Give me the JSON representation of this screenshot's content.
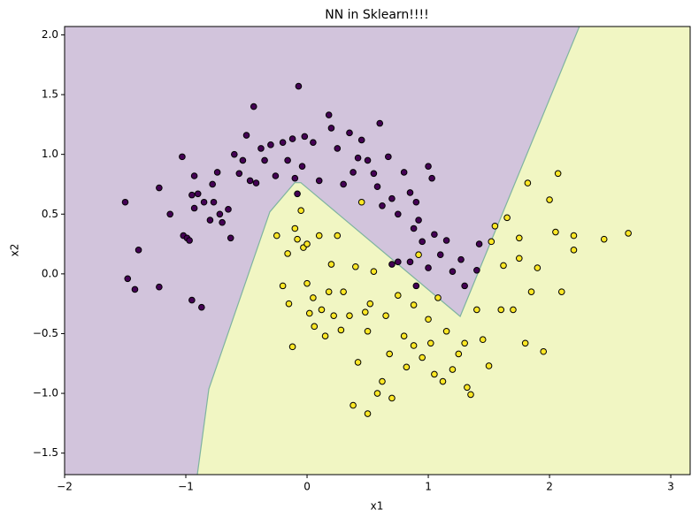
{
  "chart_data": {
    "type": "scatter",
    "title": "NN in Sklearn!!!!",
    "x_label": "x1",
    "y_label": "x2",
    "xlim": [
      -2.0,
      3.16
    ],
    "ylim": [
      -1.68,
      2.07
    ],
    "xticks": [
      {
        "value": -2,
        "label": "−2"
      },
      {
        "value": -1,
        "label": "−1"
      },
      0,
      1,
      2,
      3
    ],
    "yticks": [
      {
        "value": -1.5,
        "label": "−1.5"
      },
      {
        "value": -1.0,
        "label": "−1.0"
      },
      {
        "value": -0.5,
        "label": "−0.5"
      },
      {
        "value": 0,
        "label": "0.0"
      },
      {
        "value": 0.5,
        "label": "0.5"
      },
      {
        "value": 1.0,
        "label": "1.0"
      },
      {
        "value": 1.5,
        "label": "1.5"
      },
      {
        "value": 2.0,
        "label": "2.0"
      }
    ],
    "decision_boundary": {
      "x": [
        -0.905,
        -0.81,
        -0.307,
        -0.102,
        -0.051,
        1.263,
        1.467,
        2.248
      ],
      "y": [
        -1.68,
        -0.963,
        0.519,
        0.763,
        0.763,
        -0.356,
        0.148,
        2.074
      ],
      "color": "#7fb3a0"
    },
    "region_colors": [
      "#d2c4dc",
      "#f1f6c3"
    ],
    "series": [
      {
        "color": "#440154",
        "x": [
          -1.5,
          -1.48,
          -1.42,
          -1.39,
          -1.22,
          -1.22,
          -1.13,
          -1.03,
          -1.02,
          -0.99,
          -0.97,
          -0.95,
          -0.95,
          -0.93,
          -0.93,
          -0.9,
          -0.87,
          -0.85,
          -0.8,
          -0.78,
          -0.77,
          -0.74,
          -0.72,
          -0.7,
          -0.65,
          -0.63,
          -0.6,
          -0.56,
          -0.53,
          -0.5,
          -0.47,
          -0.44,
          -0.42,
          -0.38,
          -0.35,
          -0.3,
          -0.26,
          -0.2,
          -0.16,
          -0.12,
          -0.1,
          -0.08,
          -0.07,
          -0.04,
          -0.02,
          0.05,
          0.1,
          0.18,
          0.2,
          0.25,
          0.3,
          0.35,
          0.38,
          0.42,
          0.45,
          0.5,
          0.55,
          0.58,
          0.6,
          0.62,
          0.67,
          0.7,
          0.75,
          0.8,
          0.85,
          0.88,
          0.9,
          0.92,
          0.95,
          1.0,
          1.03,
          1.05,
          1.1,
          1.15,
          1.2,
          1.27,
          1.3,
          1.4,
          1.42,
          0.7,
          0.75,
          0.85,
          0.9,
          1.0
        ],
        "y": [
          0.6,
          -0.04,
          -0.13,
          0.2,
          0.72,
          -0.11,
          0.5,
          0.98,
          0.32,
          0.3,
          0.28,
          0.66,
          -0.22,
          0.82,
          0.55,
          0.67,
          -0.28,
          0.6,
          0.45,
          0.75,
          0.6,
          0.85,
          0.5,
          0.43,
          0.54,
          0.3,
          1.0,
          0.84,
          0.95,
          1.16,
          0.78,
          1.4,
          0.76,
          1.05,
          0.95,
          1.08,
          0.82,
          1.1,
          0.95,
          1.13,
          0.8,
          0.67,
          1.57,
          0.9,
          1.15,
          1.1,
          0.78,
          1.33,
          1.22,
          1.05,
          0.75,
          1.18,
          0.85,
          0.97,
          1.12,
          0.95,
          0.84,
          0.73,
          1.26,
          0.57,
          0.98,
          0.63,
          0.5,
          0.85,
          0.68,
          0.38,
          0.6,
          0.45,
          0.27,
          0.9,
          0.8,
          0.33,
          0.16,
          0.28,
          0.02,
          0.12,
          -0.1,
          0.03,
          0.25,
          0.08,
          0.1,
          0.1,
          -0.1,
          0.05
        ]
      },
      {
        "color": "#fde725",
        "x": [
          -0.25,
          -0.2,
          -0.16,
          -0.15,
          -0.12,
          -0.1,
          -0.08,
          -0.05,
          -0.03,
          0,
          0,
          0.02,
          0.05,
          0.06,
          0.1,
          0.12,
          0.15,
          0.18,
          0.2,
          0.22,
          0.25,
          0.28,
          0.3,
          0.35,
          0.38,
          0.42,
          0.45,
          0.48,
          0.5,
          0.5,
          0.52,
          0.55,
          0.58,
          0.62,
          0.65,
          0.68,
          0.7,
          0.75,
          0.8,
          0.82,
          0.88,
          0.92,
          0.95,
          1.0,
          1.02,
          1.05,
          1.08,
          1.12,
          1.15,
          1.2,
          1.25,
          1.3,
          1.32,
          1.35,
          1.4,
          1.45,
          1.5,
          1.52,
          1.55,
          1.6,
          1.62,
          1.65,
          1.7,
          1.75,
          1.8,
          1.82,
          1.85,
          1.9,
          1.95,
          2.0,
          2.05,
          2.07,
          2.1,
          2.2,
          2.2,
          2.45,
          2.65,
          0.88,
          0.4,
          1.75
        ],
        "y": [
          0.32,
          -0.1,
          0.17,
          -0.25,
          -0.61,
          0.38,
          0.29,
          0.53,
          0.22,
          0.25,
          -0.08,
          -0.33,
          -0.2,
          -0.44,
          0.32,
          -0.3,
          -0.52,
          -0.15,
          0.08,
          -0.35,
          0.32,
          -0.47,
          -0.15,
          -0.35,
          -1.1,
          -0.74,
          0.6,
          -0.32,
          -0.48,
          -1.17,
          -0.25,
          0.02,
          -1.0,
          -0.9,
          -0.35,
          -0.67,
          -1.04,
          -0.18,
          -0.52,
          -0.78,
          -0.6,
          0.16,
          -0.7,
          -0.38,
          -0.58,
          -0.84,
          -0.2,
          -0.9,
          -0.48,
          -0.8,
          -0.67,
          -0.58,
          -0.95,
          -1.01,
          -0.3,
          -0.55,
          -0.77,
          0.27,
          0.4,
          -0.3,
          0.07,
          0.47,
          -0.3,
          0.13,
          -0.58,
          0.76,
          -0.15,
          0.05,
          -0.65,
          0.62,
          0.35,
          0.84,
          -0.15,
          0.32,
          0.2,
          0.29,
          0.34,
          -0.26,
          0.06,
          0.3
        ]
      }
    ]
  }
}
